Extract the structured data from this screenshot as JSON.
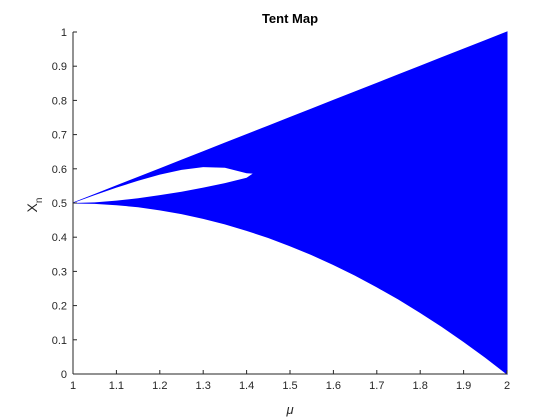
{
  "chart_data": {
    "type": "scatter",
    "title": "Tent Map",
    "xlabel": "μ",
    "ylabel": "X",
    "ylabel_sub": "n",
    "xlim": [
      1,
      2
    ],
    "ylim": [
      0,
      1
    ],
    "xticks": [
      "1",
      "1.1",
      "1.2",
      "1.3",
      "1.4",
      "1.5",
      "1.6",
      "1.7",
      "1.8",
      "1.9",
      "2"
    ],
    "yticks": [
      "0",
      "0.1",
      "0.2",
      "0.3",
      "0.4",
      "0.5",
      "0.6",
      "0.7",
      "0.8",
      "0.9",
      "1"
    ],
    "grid": false,
    "color": "#0000ff",
    "series": [
      {
        "x": [
          1.0,
          1.05,
          1.1,
          1.15,
          1.2,
          1.25,
          1.3,
          1.35,
          1.4,
          1.45,
          1.5,
          1.55,
          1.6,
          1.65,
          1.7,
          1.75,
          1.8,
          1.85,
          1.9,
          1.95,
          2.0
        ],
        "y_max": [
          0.5,
          0.525,
          0.55,
          0.575,
          0.6,
          0.625,
          0.65,
          0.675,
          0.7,
          0.725,
          0.75,
          0.775,
          0.8,
          0.825,
          0.85,
          0.875,
          0.9,
          0.925,
          0.95,
          0.975,
          1.0
        ],
        "y_min": [
          0.5,
          0.499,
          0.495,
          0.489,
          0.48,
          0.469,
          0.455,
          0.439,
          0.42,
          0.399,
          0.375,
          0.349,
          0.32,
          0.289,
          0.255,
          0.219,
          0.18,
          0.139,
          0.095,
          0.049,
          0.0
        ]
      }
    ],
    "gap": {
      "x": [
        1.0,
        1.05,
        1.1,
        1.15,
        1.2,
        1.25,
        1.3,
        1.35,
        1.4,
        1.414
      ],
      "upper": [
        0.5,
        0.523,
        0.545,
        0.565,
        0.583,
        0.597,
        0.605,
        0.603,
        0.587,
        0.586
      ],
      "lower": [
        0.5,
        0.502,
        0.507,
        0.514,
        0.523,
        0.533,
        0.545,
        0.558,
        0.574,
        0.586
      ]
    }
  }
}
